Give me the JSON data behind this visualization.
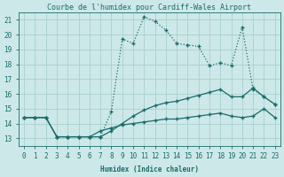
{
  "title": "Courbe de l'humidex pour Cardiff-Wales Airport",
  "xlabel": "Humidex (Indice chaleur)",
  "bg_color": "#cde8e8",
  "grid_color": "#a8d0d0",
  "line_color": "#1a6b6b",
  "xlim": [
    -0.5,
    23.5
  ],
  "ylim": [
    12.5,
    21.5
  ],
  "xticks": [
    0,
    1,
    2,
    3,
    4,
    5,
    6,
    7,
    8,
    9,
    10,
    11,
    12,
    13,
    14,
    15,
    16,
    17,
    18,
    19,
    20,
    21,
    22,
    23
  ],
  "yticks": [
    13,
    14,
    15,
    16,
    17,
    18,
    19,
    20,
    21
  ],
  "line1_x": [
    0,
    1,
    2,
    3,
    4,
    5,
    6,
    7,
    8,
    9,
    10,
    11,
    12,
    13,
    14,
    15,
    16,
    17,
    18,
    19,
    20,
    21,
    22,
    23
  ],
  "line1_y": [
    14.4,
    14.4,
    14.4,
    13.1,
    13.1,
    13.1,
    13.1,
    13.1,
    14.8,
    19.7,
    19.4,
    21.2,
    20.9,
    20.3,
    19.4,
    19.3,
    19.2,
    17.9,
    18.1,
    17.9,
    20.5,
    16.3,
    15.8,
    15.3
  ],
  "line2_x": [
    0,
    1,
    2,
    3,
    4,
    5,
    6,
    7,
    8,
    9,
    10,
    11,
    12,
    13,
    14,
    15,
    16,
    17,
    18,
    19,
    20,
    21,
    22,
    23
  ],
  "line2_y": [
    14.4,
    14.4,
    14.4,
    13.1,
    13.1,
    13.1,
    13.1,
    13.1,
    13.5,
    14.0,
    14.5,
    14.9,
    15.2,
    15.4,
    15.5,
    15.7,
    15.9,
    16.1,
    16.3,
    15.8,
    15.8,
    16.4,
    15.8,
    15.3
  ],
  "line3_x": [
    0,
    1,
    2,
    3,
    4,
    5,
    6,
    7,
    8,
    9,
    10,
    11,
    12,
    13,
    14,
    15,
    16,
    17,
    18,
    19,
    20,
    21,
    22,
    23
  ],
  "line3_y": [
    14.4,
    14.4,
    14.4,
    13.1,
    13.1,
    13.1,
    13.1,
    13.5,
    13.7,
    13.9,
    14.0,
    14.1,
    14.2,
    14.3,
    14.3,
    14.4,
    14.5,
    14.6,
    14.7,
    14.5,
    14.4,
    14.5,
    15.0,
    14.4
  ],
  "line1_dotted": true,
  "markersize": 2.2,
  "linewidth": 0.9,
  "title_fontsize": 6.0,
  "tick_fontsize": 5.5
}
